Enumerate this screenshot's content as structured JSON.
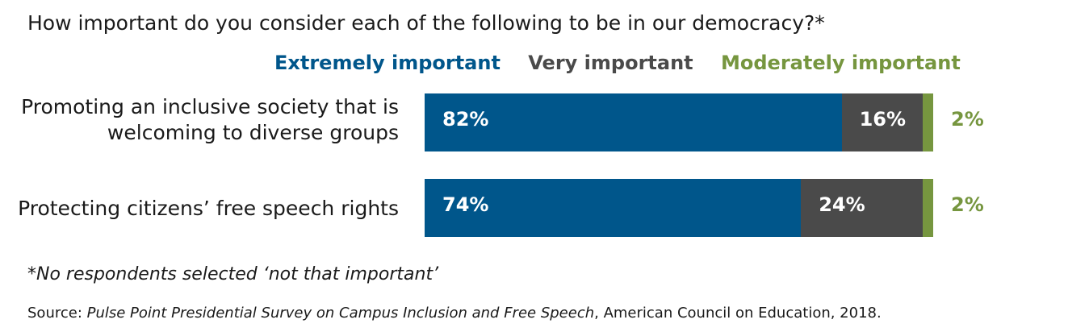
{
  "chart_data": {
    "type": "bar",
    "orientation": "horizontal",
    "stacked": true,
    "title": "How important do you consider each of the following to be in our democracy?*",
    "categories": [
      "Promoting an inclusive society that is welcoming to diverse groups",
      "Protecting citizens’ free speech rights"
    ],
    "category_lines": [
      [
        "Promoting an inclusive society that is",
        "welcoming to diverse groups"
      ],
      [
        "Protecting citizens’ free speech rights"
      ]
    ],
    "series": [
      {
        "name": "Extremely important",
        "values": [
          82,
          74
        ],
        "labels": [
          "82%",
          "74%"
        ],
        "color": "#00568b"
      },
      {
        "name": "Very important",
        "values": [
          16,
          24
        ],
        "labels": [
          "16%",
          "24%"
        ],
        "color": "#4a4a4a"
      },
      {
        "name": "Moderately important",
        "values": [
          2,
          2
        ],
        "labels": [
          "2%",
          "2%"
        ],
        "color": "#76963f"
      }
    ],
    "legend_position": "top",
    "grid": false,
    "xlim": [
      0,
      100
    ]
  },
  "footnote": "*No respondents selected ‘not that important’",
  "source": {
    "prefix": "Source: ",
    "title": "Pulse Point Presidential Survey on Campus Inclusion and Free Speech",
    "suffix": ", American Council on Education, 2018."
  }
}
